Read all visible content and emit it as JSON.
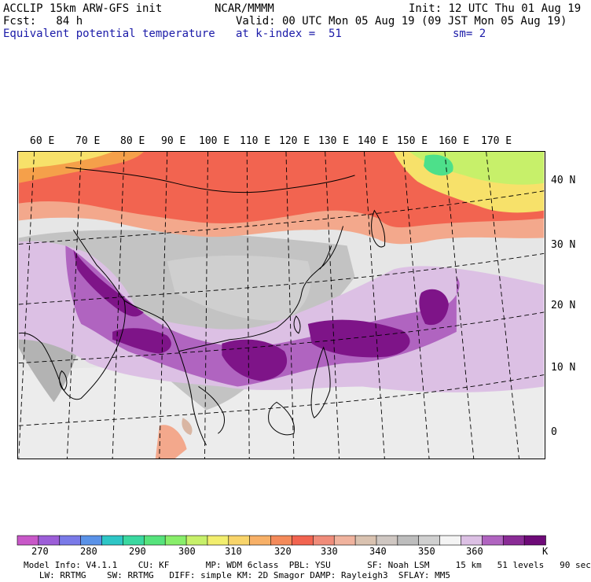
{
  "header": {
    "model": "ACCLIP 15km ARW-GFS init",
    "fcst": "Fcst:   84 h",
    "field": "Equivalent potential temperature",
    "center": "NCAR/MMMM",
    "init": "Init: 12 UTC Thu 01 Aug 19",
    "valid": "Valid: 00 UTC Mon 05 Aug 19 (09 JST Mon 05 Aug 19)",
    "level": "at k-index =  51",
    "smooth": "sm= 2"
  },
  "map": {
    "longitude_labels": [
      "60 E",
      "70 E",
      "80 E",
      "90 E",
      "100 E",
      "110 E",
      "120 E",
      "130 E",
      "140 E",
      "150 E",
      "160 E",
      "170 E"
    ],
    "latitude_labels": [
      "40 N",
      "30 N",
      "20 N",
      "10 N",
      "0"
    ],
    "colors": {
      "purple_dark": "#7e1488",
      "purple_mid": "#a049b4",
      "purple_light": "#d7b6e0",
      "white": "#f2f2f2",
      "light_gray": "#d4d4d4",
      "gray": "#b8b8b8",
      "tan": "#d9b6a3",
      "salmon": "#f3a88c",
      "red": "#f26450",
      "orange": "#f5a04a",
      "yellow": "#f7e16a",
      "green": "#7de88a",
      "bright_green": "#4de08a"
    }
  },
  "colorbar": {
    "unit": "K",
    "labels": [
      "270",
      "280",
      "290",
      "300",
      "310",
      "320",
      "330",
      "340",
      "350",
      "360"
    ],
    "colors": [
      "#c858c8",
      "#9c5ed8",
      "#7a7ae8",
      "#5a92e8",
      "#2ec6c6",
      "#3ad8a0",
      "#56e37c",
      "#88ee6a",
      "#c7f06a",
      "#f2ee6e",
      "#f8d46a",
      "#f7b067",
      "#f48a5a",
      "#f26450",
      "#f08c7a",
      "#f0b39e",
      "#d9c2b0",
      "#cfc7c2",
      "#bdbdbd",
      "#d0d0d0",
      "#f4f4f4",
      "#dcc0e4",
      "#b064c0",
      "#8a2c96",
      "#6e0a78"
    ]
  },
  "footer": {
    "line1": "Model Info: V4.1.1    CU: KF       MP: WDM 6class  PBL: YSU       SF: Noah LSM     15 km   51 levels   90 sec",
    "line2": "   LW: RRTMG    SW: RRTMG   DIFF: simple KM: 2D Smagor DAMP: Rayleigh3  SFLAY: MM5"
  }
}
